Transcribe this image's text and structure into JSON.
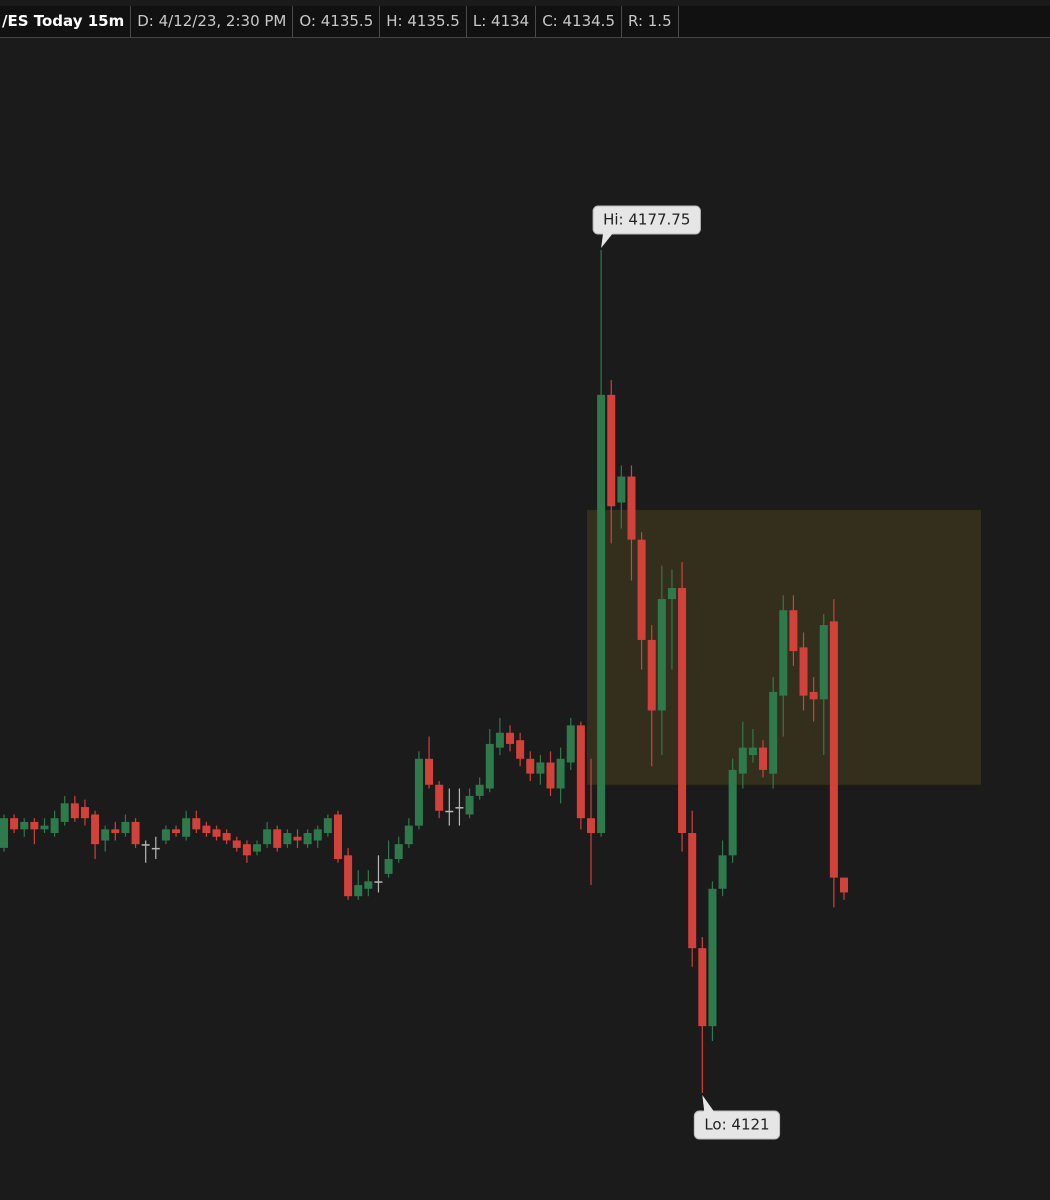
{
  "header": {
    "symbol": "/ES Today 15m",
    "fields": [
      "D: 4/12/23, 2:30 PM",
      "O: 4135.5",
      "H: 4135.5",
      "L: 4134",
      "C: 4134.5",
      "R: 1.5"
    ]
  },
  "chart_data": {
    "type": "candlestick",
    "open": [
      4137.5,
      4139.5,
      4138.75,
      4139.25,
      4138.75,
      4138.5,
      4139.25,
      4140.5,
      4140.25,
      4139.75,
      4138,
      4138.75,
      4138.5,
      4139.25,
      4137.75,
      4137.5,
      4138,
      4138.75,
      4138.25,
      4139.5,
      4139,
      4138.75,
      4138.5,
      4138,
      4137.75,
      4137.25,
      4137.75,
      4138.75,
      4137.75,
      4138.25,
      4137.75,
      4138,
      4138.5,
      4139.75,
      4137,
      4134.25,
      4134.75,
      4135.25,
      4135.75,
      4136.75,
      4137.75,
      4139,
      4143.5,
      4141.75,
      4140,
      4140.25,
      4139.75,
      4141,
      4141.5,
      4144.25,
      4145.25,
      4144.75,
      4143.5,
      4142.5,
      4143.25,
      4141.5,
      4143.25,
      4145.75,
      4139.5,
      4138.5,
      4168,
      4160.75,
      4162.5,
      4158.25,
      4151.5,
      4146.75,
      4154.25,
      4155,
      4138.5,
      4130.75,
      4125.5,
      4134.75,
      4137,
      4142.5,
      4143.75,
      4144.25,
      4142.5,
      4147.75,
      4153.5,
      4151,
      4148,
      4147.5,
      4152.75,
      4135.5
    ],
    "high": [
      4139.75,
      4139.75,
      4139.5,
      4139.5,
      4139.5,
      4140,
      4141,
      4141,
      4140.75,
      4140,
      4139,
      4139.25,
      4139.75,
      4139.5,
      4138,
      4138.25,
      4139,
      4139,
      4140,
      4140,
      4139.25,
      4139,
      4138.75,
      4138.25,
      4138,
      4138,
      4139.25,
      4139,
      4138.75,
      4138.75,
      4138.75,
      4139,
      4139.75,
      4140,
      4137.5,
      4136,
      4136,
      4137,
      4138,
      4138.25,
      4139.5,
      4144,
      4145,
      4142,
      4141.5,
      4141.5,
      4141.5,
      4142.25,
      4145.5,
      4146.25,
      4145.75,
      4145.25,
      4144,
      4143.75,
      4144,
      4144.25,
      4146.25,
      4146,
      4143.5,
      4177.75,
      4169,
      4163.25,
      4163.25,
      4158.75,
      4152.5,
      4156.5,
      4156.25,
      4156.75,
      4140,
      4131.5,
      4135.25,
      4138,
      4143.5,
      4146,
      4145.5,
      4144.75,
      4149,
      4154.5,
      4154.5,
      4152,
      4149,
      4153.25,
      4154.25,
      4135.5
    ],
    "low": [
      4137.25,
      4138.5,
      4138.25,
      4137.75,
      4138.5,
      4138.25,
      4139,
      4139.25,
      4139,
      4136.75,
      4137.25,
      4138,
      4138.25,
      4137.5,
      4136.5,
      4136.75,
      4137.75,
      4138.25,
      4138,
      4138.5,
      4138.25,
      4138,
      4137.75,
      4137.25,
      4136.5,
      4137,
      4137.5,
      4137.25,
      4137.5,
      4137.5,
      4137.5,
      4137.5,
      4138.25,
      4136.5,
      4134,
      4134,
      4134.25,
      4134.5,
      4135.5,
      4136.5,
      4137.5,
      4138.75,
      4141.5,
      4139.5,
      4139,
      4139,
      4139.5,
      4140.75,
      4141.25,
      4143.75,
      4144,
      4143,
      4142,
      4141.75,
      4141,
      4140.5,
      4142.75,
      4138.75,
      4135,
      4138.25,
      4158,
      4159,
      4155.5,
      4149.5,
      4143,
      4143.75,
      4149.5,
      4137.25,
      4129.5,
      4121,
      4124.5,
      4134.25,
      4136.5,
      4141.5,
      4143.25,
      4142.25,
      4141.5,
      4145,
      4149.75,
      4146.75,
      4146,
      4143.75,
      4133.5,
      4134
    ],
    "close": [
      4139.5,
      4138.75,
      4139.25,
      4138.75,
      4139,
      4139.5,
      4140.5,
      4139.5,
      4139.5,
      4137.75,
      4138.75,
      4138.5,
      4139.25,
      4137.75,
      4137.75,
      4137.5,
      4138.75,
      4138.5,
      4139.5,
      4138.75,
      4138.5,
      4138.25,
      4138,
      4137.5,
      4137,
      4137.75,
      4138.75,
      4137.5,
      4138.5,
      4138,
      4138.5,
      4138.75,
      4139.5,
      4136.75,
      4134.25,
      4135,
      4135.25,
      4135.25,
      4136.75,
      4137.75,
      4139,
      4143.5,
      4141.75,
      4140,
      4140,
      4140.25,
      4141,
      4141.75,
      4144.5,
      4145.25,
      4144.5,
      4143.5,
      4142.5,
      4143.25,
      4141.5,
      4143.5,
      4145.75,
      4139.5,
      4138.5,
      4168,
      4160.5,
      4162.5,
      4158.25,
      4151.5,
      4146.75,
      4154.25,
      4155,
      4138.5,
      4130.75,
      4125.5,
      4134.75,
      4137,
      4142.75,
      4144.25,
      4144.25,
      4142.75,
      4148,
      4153.5,
      4150.75,
      4147.75,
      4147.5,
      4152.5,
      4135.5,
      4134.5
    ],
    "up_color": "#2f7a4c",
    "down_color": "#d2413a",
    "flat_color": "#b8b8b8",
    "zone": {
      "low": 4141.75,
      "high": 4160.25,
      "color": "#37321c"
    },
    "annotations": [
      {
        "text": "Hi: 4177.75",
        "value": 4177.75
      },
      {
        "text": "Lo: 4121",
        "value": 4121
      }
    ]
  }
}
